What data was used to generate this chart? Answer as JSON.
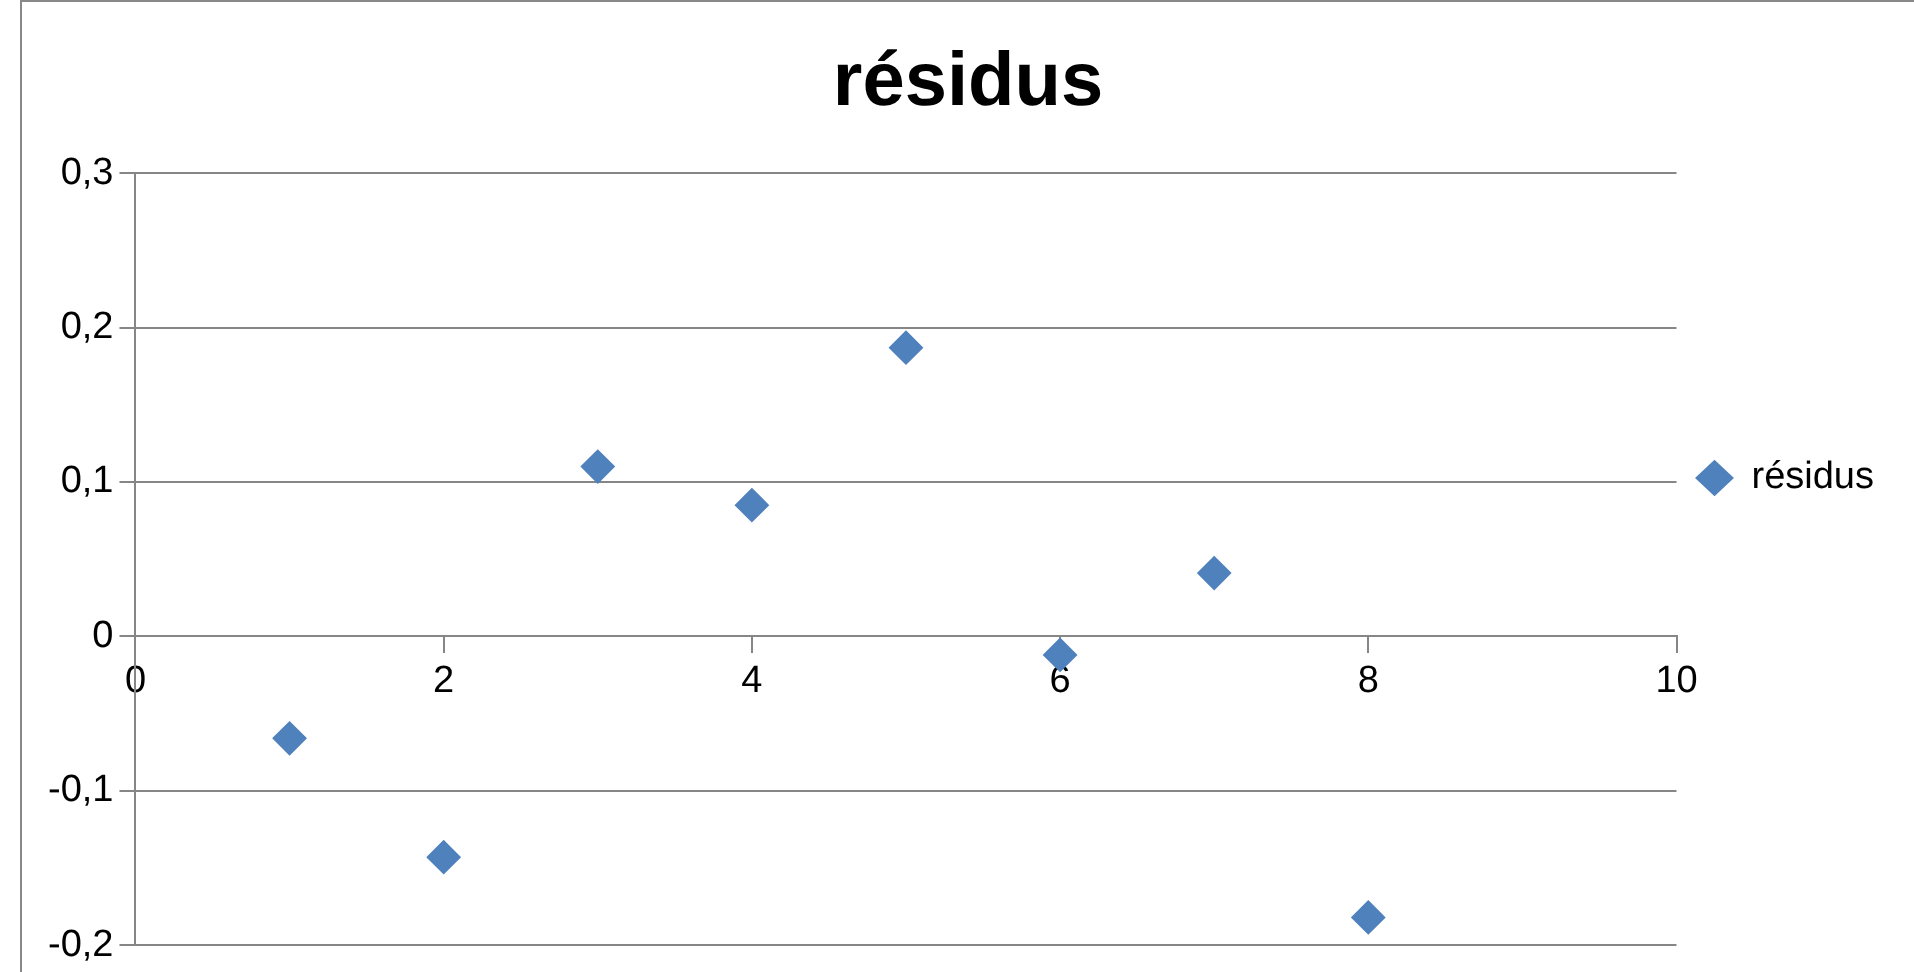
{
  "chart_data": {
    "type": "scatter",
    "title": "résidus",
    "series": [
      {
        "name": "résidus",
        "color": "#4f81bd",
        "x": [
          1,
          2,
          3,
          4,
          5,
          6,
          7,
          8
        ],
        "values": [
          -0.066,
          -0.143,
          0.11,
          0.085,
          0.187,
          -0.012,
          0.041,
          -0.182
        ]
      }
    ],
    "xlim": [
      0,
      10
    ],
    "xticks": [
      0,
      2,
      4,
      6,
      8,
      10
    ],
    "ylim": [
      -0.2,
      0.3
    ],
    "yticks": [
      {
        "value": -0.2,
        "label": "-0,2"
      },
      {
        "value": -0.1,
        "label": "-0,1"
      },
      {
        "value": 0,
        "label": "0"
      },
      {
        "value": 0.1,
        "label": "0,1"
      },
      {
        "value": 0.2,
        "label": "0,2"
      },
      {
        "value": 0.3,
        "label": "0,3"
      }
    ],
    "grid": "y",
    "legend": "right",
    "marker": "diamond"
  }
}
